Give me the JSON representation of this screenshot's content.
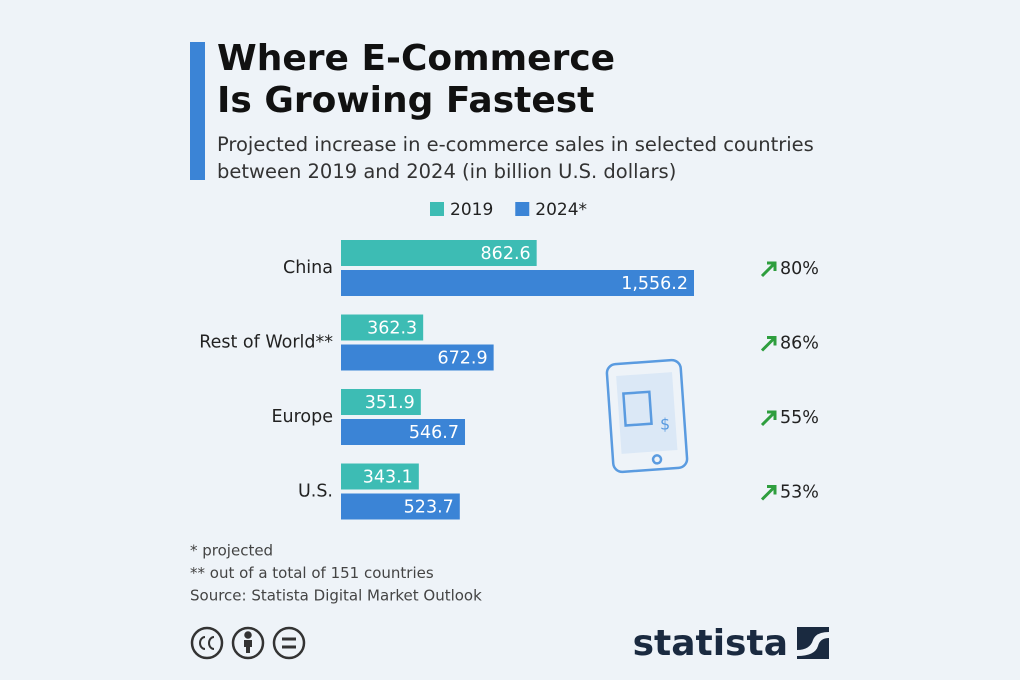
{
  "chart_data": {
    "type": "hbar",
    "title": "Where E-Commerce Is Growing Fastest",
    "subtitle": "Projected increase in e-commerce sales in selected countries between 2019 and 2024 (in billion U.S. dollars)",
    "categories": [
      "China",
      "Rest of World**",
      "Europe",
      "U.S."
    ],
    "series": [
      {
        "name": "2019",
        "color": "#3dbcb4",
        "values": [
          862.6,
          362.3,
          351.9,
          343.1
        ]
      },
      {
        "name": "2024*",
        "color": "#3b84d6",
        "values": [
          1556.2,
          672.9,
          546.7,
          523.7
        ],
        "value_labels": [
          "1,556.2",
          "672.9",
          "546.7",
          "523.7"
        ]
      }
    ],
    "growth": {
      "values": [
        80,
        86,
        55,
        53
      ],
      "value_labels": [
        "80%",
        "86%",
        "55%",
        "53%"
      ],
      "color": "#2e9e3e"
    },
    "notes": [
      "*  projected",
      "** out of a total of 151 countries",
      "Source: Statista Digital Market Outlook"
    ],
    "brand": "statista"
  }
}
